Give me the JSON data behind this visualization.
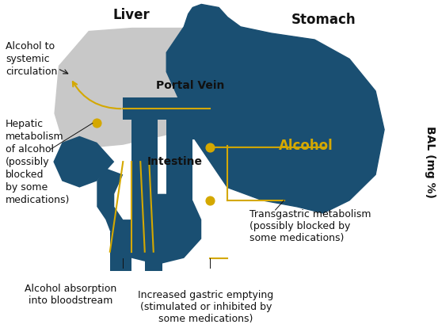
{
  "bg_color": "#ffffff",
  "liver_color": "#c8c8c8",
  "stomach_color": "#1a4f72",
  "arrow_color": "#d4a800",
  "dot_color": "#d4a800",
  "label_color": "#111111",
  "alcohol_label_color": "#d4a800",
  "bal_label": "BAL (mg %)",
  "liver_label": "Liver",
  "stomach_label": "Stomach",
  "portal_vein_label": "Portal Vein",
  "intestine_label": "Intestine",
  "alcohol_label": "Alcohol",
  "text_alcohol_systemic": "Alcohol to\nsystemic\ncirculation",
  "text_hepatic": "Hepatic\nmetabolism\nof alcohol\n(possibly\nblocked\nby some\nmedications)",
  "text_absorption": "Alcohol absorption\ninto bloodstream",
  "text_gastric_emptying": "Increased gastric emptying\n(stimulated or inhibited by\nsome medications)",
  "text_transgastric": "Transgastric metabolism\n(possibly blocked by\nsome medications)"
}
